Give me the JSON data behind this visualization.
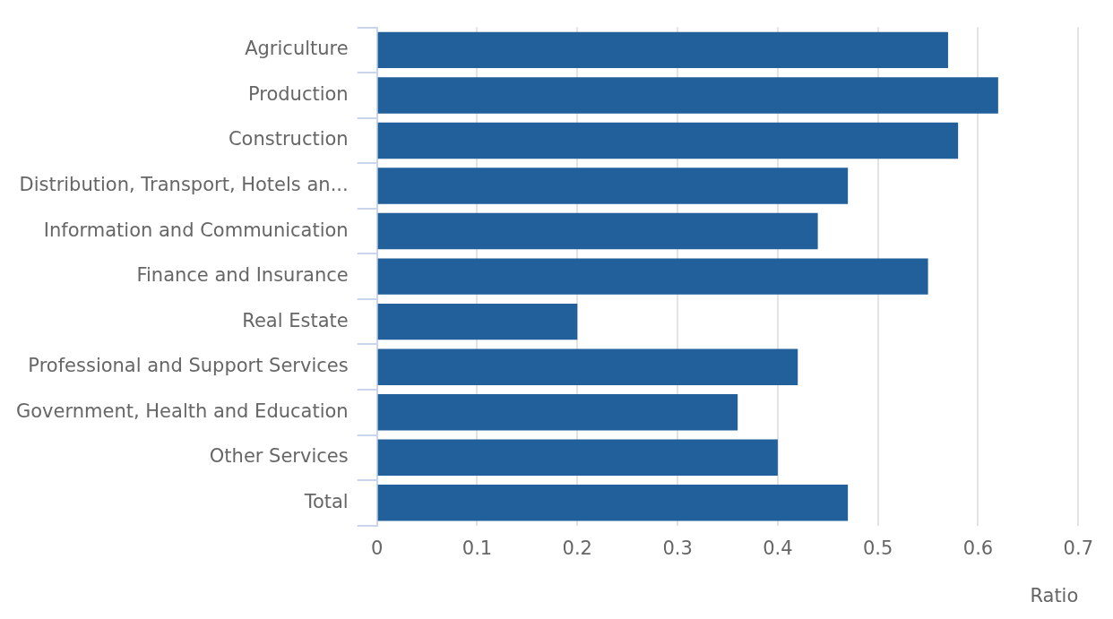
{
  "chart_data": {
    "type": "bar",
    "orientation": "horizontal",
    "xlabel": "Ratio",
    "categories": [
      "Agriculture",
      "Production",
      "Construction",
      "Distribution, Transport, Hotels an...",
      "Information and Communication",
      "Finance and Insurance",
      "Real Estate",
      "Professional and Support Services",
      "Government, Health and Education",
      "Other Services",
      "Total"
    ],
    "values": [
      0.57,
      0.62,
      0.58,
      0.47,
      0.44,
      0.55,
      0.2,
      0.42,
      0.36,
      0.4,
      0.47
    ],
    "color": "#21609a",
    "xlim": [
      0,
      0.7
    ],
    "xticks": [
      0,
      0.1,
      0.2,
      0.3,
      0.4,
      0.5,
      0.6,
      0.7
    ],
    "grid": "x",
    "legend": false
  }
}
